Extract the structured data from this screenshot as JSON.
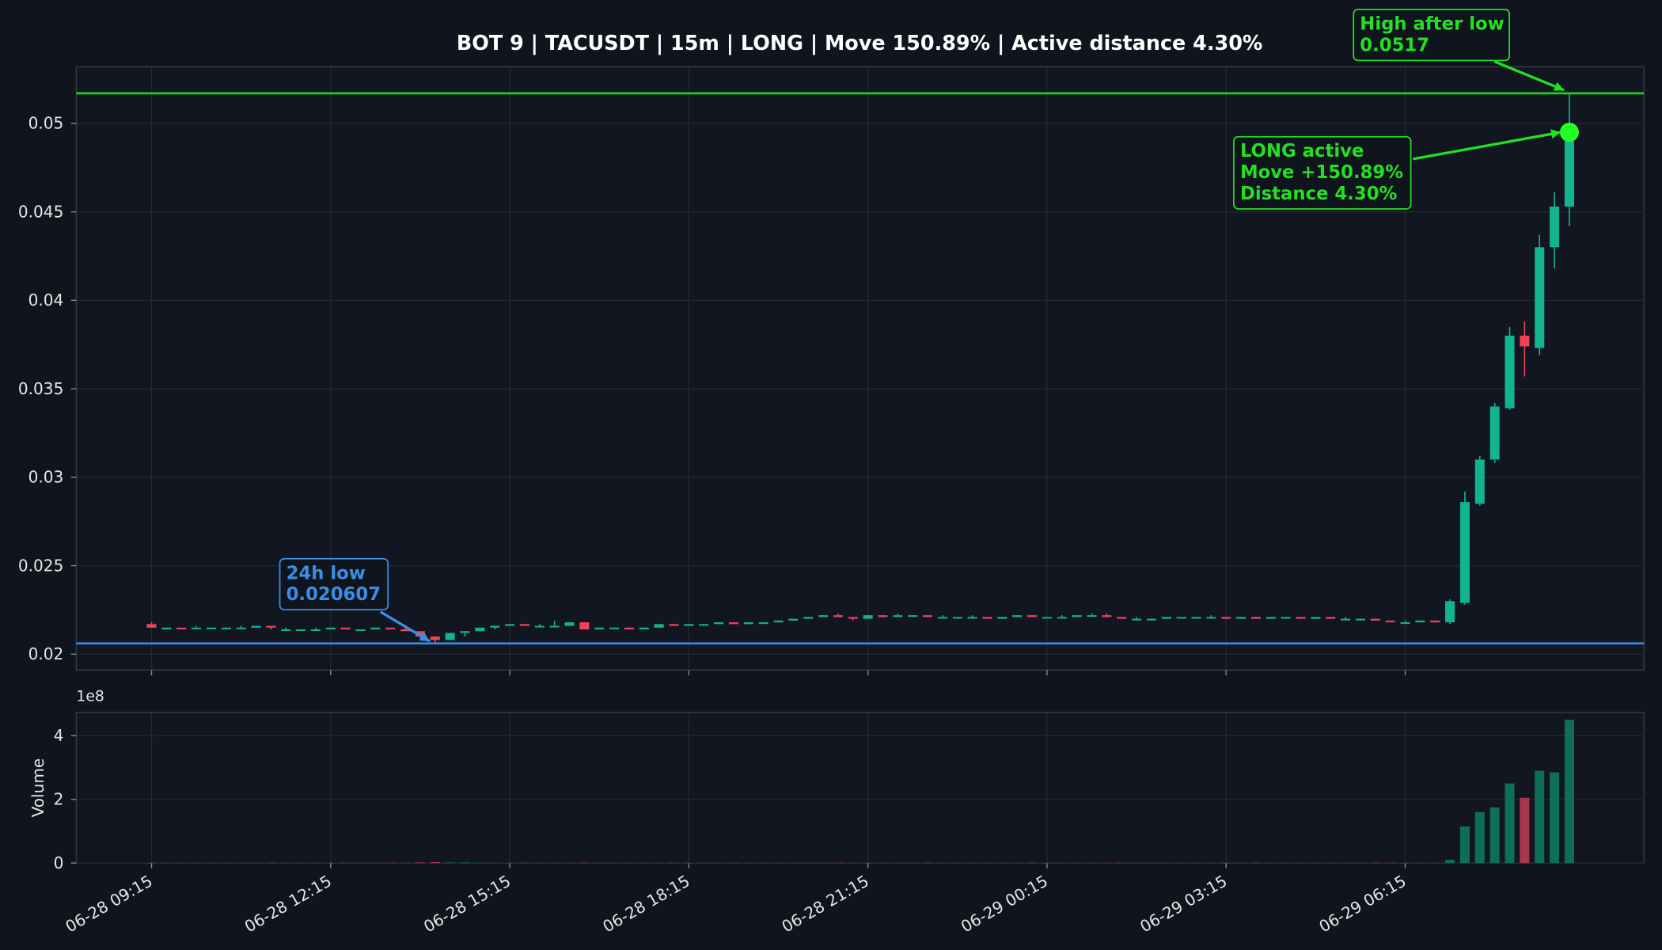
{
  "chart_data": [
    {
      "type": "candlestick",
      "title": "BOT 9 | TACUSDT | 15m | LONG | Move 150.89% | Active distance 4.30%",
      "up_color": "#12b48f",
      "down_color": "#f0435a",
      "ylim": [
        0.0191,
        0.0532
      ],
      "yticks": [
        0.02,
        0.025,
        0.03,
        0.035,
        0.04,
        0.045,
        0.05
      ],
      "grid": true,
      "open": [
        0.0217,
        0.0214,
        0.0215,
        0.0215,
        0.0215,
        0.0215,
        0.0215,
        0.0215,
        0.0216,
        0.0214,
        0.0214,
        0.0214,
        0.0214,
        0.0215,
        0.0214,
        0.0214,
        0.0215,
        0.0214,
        0.0213,
        0.021,
        0.0208,
        0.0212,
        0.0213,
        0.0215,
        0.0216,
        0.0217,
        0.0216,
        0.0216,
        0.0216,
        0.0218,
        0.0214,
        0.0215,
        0.0215,
        0.0214,
        0.0215,
        0.0217,
        0.0216,
        0.0217,
        0.0217,
        0.0218,
        0.0217,
        0.0218,
        0.0218,
        0.0219,
        0.022,
        0.0221,
        0.0222,
        0.0221,
        0.022,
        0.0222,
        0.0221,
        0.0222,
        0.0222,
        0.0221,
        0.0221,
        0.0221,
        0.0221,
        0.022,
        0.0221,
        0.0222,
        0.0221,
        0.0221,
        0.0221,
        0.0222,
        0.0222,
        0.0221,
        0.022,
        0.022,
        0.022,
        0.0221,
        0.0221,
        0.0221,
        0.0221,
        0.022,
        0.0221,
        0.022,
        0.0221,
        0.0221,
        0.022,
        0.0221,
        0.022,
        0.022,
        0.022,
        0.0219,
        0.0218,
        0.0218,
        0.0219,
        0.0218,
        0.0229,
        0.0285,
        0.031,
        0.0339,
        0.038,
        0.0373,
        0.043,
        0.0453
      ],
      "high": [
        0.0218,
        0.0215,
        0.0215,
        0.0216,
        0.0215,
        0.0215,
        0.0216,
        0.0216,
        0.0216,
        0.0215,
        0.0214,
        0.0215,
        0.0215,
        0.0215,
        0.0214,
        0.0215,
        0.0215,
        0.0215,
        0.0213,
        0.021,
        0.0212,
        0.0213,
        0.0215,
        0.0216,
        0.0217,
        0.0217,
        0.0217,
        0.0219,
        0.0218,
        0.0218,
        0.0215,
        0.0215,
        0.0215,
        0.0215,
        0.0217,
        0.0217,
        0.0217,
        0.0217,
        0.0218,
        0.0218,
        0.0218,
        0.0218,
        0.0219,
        0.022,
        0.0221,
        0.0222,
        0.0223,
        0.0221,
        0.0222,
        0.0222,
        0.0223,
        0.0222,
        0.0222,
        0.0222,
        0.0221,
        0.0222,
        0.0221,
        0.0221,
        0.0222,
        0.0222,
        0.0221,
        0.0222,
        0.0222,
        0.0223,
        0.0223,
        0.0221,
        0.0221,
        0.022,
        0.0221,
        0.0221,
        0.0221,
        0.0222,
        0.0221,
        0.0221,
        0.0221,
        0.0221,
        0.0221,
        0.0221,
        0.0221,
        0.0221,
        0.0221,
        0.022,
        0.022,
        0.0219,
        0.0219,
        0.0219,
        0.0219,
        0.0231,
        0.0292,
        0.0312,
        0.0342,
        0.0385,
        0.0388,
        0.0437,
        0.0461,
        0.0517
      ],
      "low": [
        0.0215,
        0.0214,
        0.0214,
        0.0215,
        0.0215,
        0.0214,
        0.0215,
        0.0215,
        0.0214,
        0.0214,
        0.0214,
        0.0214,
        0.0214,
        0.0214,
        0.0214,
        0.0214,
        0.0214,
        0.0213,
        0.0209,
        0.020607,
        0.0208,
        0.021,
        0.0213,
        0.0214,
        0.0216,
        0.0216,
        0.0216,
        0.0216,
        0.0216,
        0.0214,
        0.0214,
        0.0214,
        0.0214,
        0.0214,
        0.0215,
        0.0216,
        0.0216,
        0.0216,
        0.0217,
        0.0217,
        0.0217,
        0.0217,
        0.0218,
        0.0219,
        0.022,
        0.0221,
        0.0221,
        0.0219,
        0.022,
        0.0221,
        0.0221,
        0.0221,
        0.0221,
        0.0221,
        0.022,
        0.022,
        0.022,
        0.022,
        0.0221,
        0.0221,
        0.0221,
        0.0221,
        0.0221,
        0.0222,
        0.0221,
        0.022,
        0.022,
        0.0219,
        0.022,
        0.022,
        0.0221,
        0.022,
        0.022,
        0.022,
        0.022,
        0.022,
        0.022,
        0.022,
        0.022,
        0.022,
        0.022,
        0.0219,
        0.0219,
        0.0218,
        0.0218,
        0.0218,
        0.0218,
        0.0217,
        0.0228,
        0.0284,
        0.0308,
        0.0338,
        0.0357,
        0.0369,
        0.0418,
        0.0442
      ],
      "close": [
        0.0215,
        0.0215,
        0.0214,
        0.0215,
        0.0215,
        0.0215,
        0.0215,
        0.0216,
        0.0215,
        0.0214,
        0.0214,
        0.0214,
        0.0215,
        0.0214,
        0.0214,
        0.0215,
        0.0214,
        0.0213,
        0.021,
        0.0208,
        0.0212,
        0.0213,
        0.0215,
        0.0216,
        0.0217,
        0.0216,
        0.0216,
        0.0216,
        0.0218,
        0.0214,
        0.0215,
        0.0215,
        0.0214,
        0.0215,
        0.0217,
        0.0216,
        0.0217,
        0.0217,
        0.0218,
        0.0217,
        0.0218,
        0.0218,
        0.0219,
        0.022,
        0.0221,
        0.0222,
        0.0221,
        0.022,
        0.0222,
        0.0221,
        0.0222,
        0.0222,
        0.0221,
        0.0221,
        0.0221,
        0.0221,
        0.022,
        0.0221,
        0.0222,
        0.0221,
        0.0221,
        0.0221,
        0.0222,
        0.0222,
        0.0221,
        0.022,
        0.022,
        0.022,
        0.0221,
        0.0221,
        0.0221,
        0.0221,
        0.022,
        0.0221,
        0.022,
        0.0221,
        0.0221,
        0.022,
        0.0221,
        0.022,
        0.022,
        0.022,
        0.0219,
        0.0218,
        0.0218,
        0.0219,
        0.0218,
        0.023,
        0.0286,
        0.031,
        0.034,
        0.038,
        0.0374,
        0.043,
        0.0453,
        0.0495
      ],
      "hlines": [
        {
          "value": 0.0517,
          "color": "#1ed21e"
        },
        {
          "value": 0.020607,
          "color": "#3a86e0"
        }
      ],
      "marker_color": "#22ff22",
      "annotations": [
        {
          "text": [
            "High after low",
            "0.0517"
          ],
          "color": "#22e022"
        },
        {
          "text": [
            "LONG active",
            "Move +150.89%",
            "Distance 4.30%"
          ],
          "color": "#22e022"
        },
        {
          "text": [
            "24h low",
            "0.020607"
          ],
          "color": "#3b8ee8"
        }
      ]
    },
    {
      "type": "bar",
      "ylabel": "Volume",
      "offset_label": "1e8",
      "ylim": [
        0,
        4.73
      ],
      "yticks": [
        0,
        2,
        4
      ],
      "grid": true,
      "up_color": "#0e6e5a",
      "down_color": "#a9374a",
      "categories": [
        "06-28 09:15",
        null,
        null,
        null,
        null,
        null,
        null,
        null,
        null,
        null,
        null,
        null,
        "06-28 12:15",
        null,
        null,
        null,
        null,
        null,
        null,
        null,
        null,
        null,
        null,
        null,
        "06-28 15:15",
        null,
        null,
        null,
        null,
        null,
        null,
        null,
        null,
        null,
        null,
        null,
        "06-28 18:15",
        null,
        null,
        null,
        null,
        null,
        null,
        null,
        null,
        null,
        null,
        null,
        "06-28 21:15",
        null,
        null,
        null,
        null,
        null,
        null,
        null,
        null,
        null,
        null,
        null,
        "06-29 00:15",
        null,
        null,
        null,
        null,
        null,
        null,
        null,
        null,
        null,
        null,
        null,
        "06-29 03:15",
        null,
        null,
        null,
        null,
        null,
        null,
        null,
        null,
        null,
        null,
        null,
        "06-29 06:15",
        null,
        null,
        null,
        null,
        null,
        null,
        null,
        null,
        null,
        null,
        null
      ],
      "values": [
        0.01,
        0.01,
        0.01,
        0.01,
        0.01,
        0.01,
        0.01,
        0.01,
        0.01,
        0.01,
        0.01,
        0.01,
        0.01,
        0.01,
        0.01,
        0.01,
        0.01,
        0.01,
        0.02,
        0.03,
        0.02,
        0.02,
        0.01,
        0.01,
        0.01,
        0.01,
        0.01,
        0.01,
        0.01,
        0.01,
        0.01,
        0.01,
        0.01,
        0.01,
        0.01,
        0.01,
        0.01,
        0.01,
        0.01,
        0.01,
        0.01,
        0.01,
        0.01,
        0.01,
        0.01,
        0.01,
        0.01,
        0.01,
        0.01,
        0.01,
        0.01,
        0.01,
        0.01,
        0.01,
        0.01,
        0.01,
        0.01,
        0.01,
        0.01,
        0.01,
        0.01,
        0.01,
        0.01,
        0.01,
        0.01,
        0.01,
        0.01,
        0.01,
        0.01,
        0.01,
        0.01,
        0.01,
        0.01,
        0.01,
        0.01,
        0.01,
        0.01,
        0.01,
        0.01,
        0.01,
        0.01,
        0.01,
        0.01,
        0.01,
        0.01,
        0.01,
        0.01,
        0.1,
        1.15,
        1.6,
        1.75,
        2.5,
        2.05,
        2.9,
        2.85,
        4.5
      ]
    }
  ]
}
